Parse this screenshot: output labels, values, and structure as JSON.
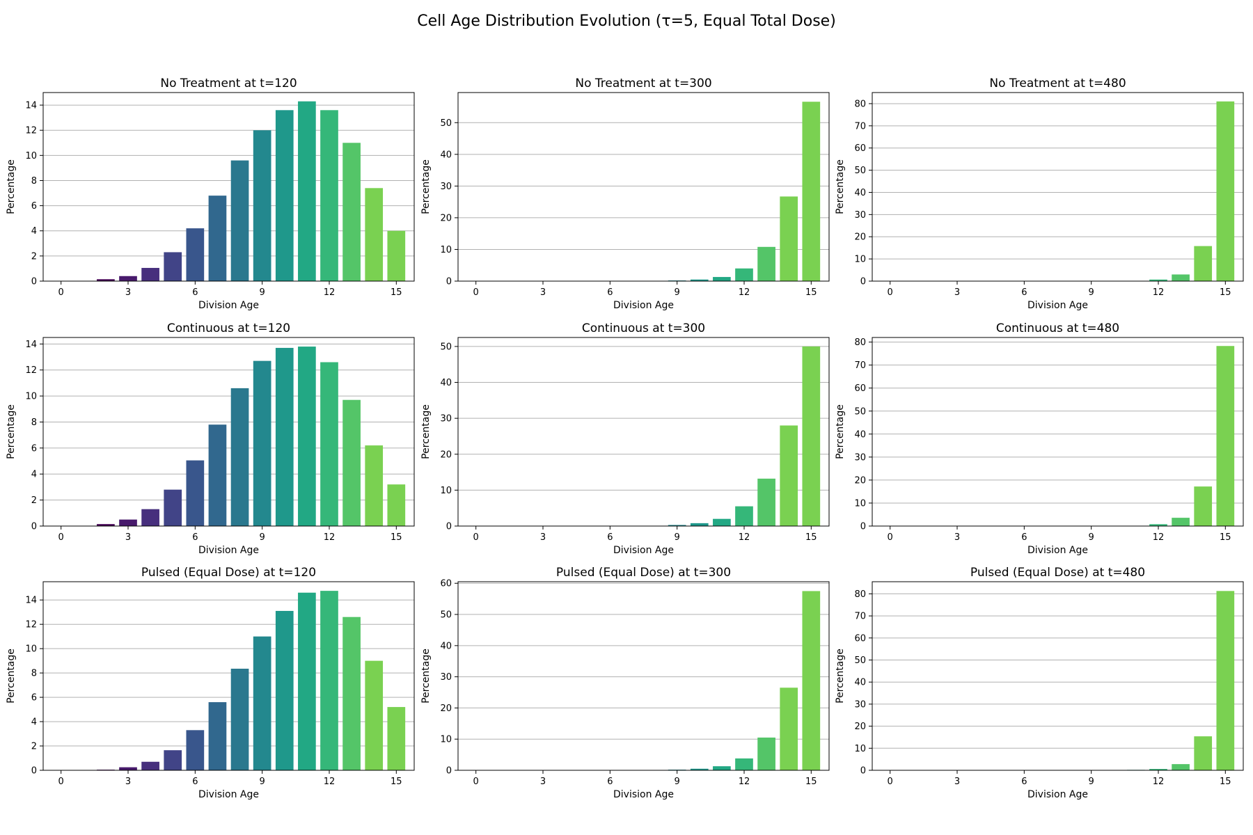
{
  "suptitle": "Cell Age Distribution Evolution (τ=5, Equal Total Dose)",
  "colors": [
    "#440154",
    "#481a6c",
    "#472f7d",
    "#414487",
    "#39568c",
    "#31688e",
    "#2a788e",
    "#23888e",
    "#1f988b",
    "#22a884",
    "#35b779",
    "#54c568",
    "#7ad151"
  ],
  "chart_data": [
    {
      "type": "bar",
      "title": "No Treatment at t=120",
      "xlabel": "Division Age",
      "ylabel": "Percentage",
      "xticks": [
        0,
        3,
        6,
        9,
        12,
        15
      ],
      "yticks": [
        0,
        2,
        4,
        6,
        8,
        10,
        12,
        14
      ],
      "ylim": [
        0,
        15
      ],
      "grid": "y",
      "x": [
        0,
        1,
        2,
        3,
        4,
        5,
        6,
        7,
        8,
        9,
        10,
        11,
        12,
        13,
        14,
        15
      ],
      "values": [
        0,
        0,
        0.15,
        0.4,
        1.05,
        2.3,
        4.2,
        6.8,
        9.6,
        12.0,
        13.6,
        14.3,
        13.6,
        11.0,
        7.4,
        4.0
      ]
    },
    {
      "type": "bar",
      "title": "No Treatment at t=300",
      "xlabel": "Division Age",
      "ylabel": "Percentage",
      "xticks": [
        0,
        3,
        6,
        9,
        12,
        15
      ],
      "yticks": [
        0,
        10,
        20,
        30,
        40,
        50
      ],
      "ylim": [
        0,
        59.5
      ],
      "grid": "y",
      "x": [
        0,
        1,
        2,
        3,
        4,
        5,
        6,
        7,
        8,
        9,
        10,
        11,
        12,
        13,
        14,
        15
      ],
      "values": [
        0,
        0,
        0,
        0,
        0,
        0,
        0,
        0,
        0,
        0.2,
        0.5,
        1.3,
        4.0,
        10.8,
        26.7,
        56.6
      ]
    },
    {
      "type": "bar",
      "title": "No Treatment at t=480",
      "xlabel": "Division Age",
      "ylabel": "Percentage",
      "xticks": [
        0,
        3,
        6,
        9,
        12,
        15
      ],
      "yticks": [
        0,
        10,
        20,
        30,
        40,
        50,
        60,
        70,
        80
      ],
      "ylim": [
        0,
        85
      ],
      "grid": "y",
      "x": [
        0,
        1,
        2,
        3,
        4,
        5,
        6,
        7,
        8,
        9,
        10,
        11,
        12,
        13,
        14,
        15
      ],
      "values": [
        0,
        0,
        0,
        0,
        0,
        0,
        0,
        0,
        0,
        0,
        0,
        0.1,
        0.7,
        3.0,
        15.8,
        81.0
      ]
    },
    {
      "type": "bar",
      "title": "Continuous at t=120",
      "xlabel": "Division Age",
      "ylabel": "Percentage",
      "xticks": [
        0,
        3,
        6,
        9,
        12,
        15
      ],
      "yticks": [
        0,
        2,
        4,
        6,
        8,
        10,
        12,
        14
      ],
      "ylim": [
        0,
        14.5
      ],
      "grid": "y",
      "x": [
        0,
        1,
        2,
        3,
        4,
        5,
        6,
        7,
        8,
        9,
        10,
        11,
        12,
        13,
        14,
        15
      ],
      "values": [
        0,
        0,
        0.15,
        0.5,
        1.3,
        2.8,
        5.05,
        7.8,
        10.6,
        12.7,
        13.7,
        13.8,
        12.6,
        9.7,
        6.2,
        3.2
      ]
    },
    {
      "type": "bar",
      "title": "Continuous at t=300",
      "xlabel": "Division Age",
      "ylabel": "Percentage",
      "xticks": [
        0,
        3,
        6,
        9,
        12,
        15
      ],
      "yticks": [
        0,
        10,
        20,
        30,
        40,
        50
      ],
      "ylim": [
        0,
        52.5
      ],
      "grid": "y",
      "x": [
        0,
        1,
        2,
        3,
        4,
        5,
        6,
        7,
        8,
        9,
        10,
        11,
        12,
        13,
        14,
        15
      ],
      "values": [
        0,
        0,
        0,
        0,
        0,
        0,
        0,
        0,
        0,
        0.3,
        0.8,
        2.0,
        5.5,
        13.2,
        28.0,
        50.0
      ]
    },
    {
      "type": "bar",
      "title": "Continuous at t=480",
      "xlabel": "Division Age",
      "ylabel": "Percentage",
      "xticks": [
        0,
        3,
        6,
        9,
        12,
        15
      ],
      "yticks": [
        0,
        10,
        20,
        30,
        40,
        50,
        60,
        70,
        80
      ],
      "ylim": [
        0,
        82
      ],
      "grid": "y",
      "x": [
        0,
        1,
        2,
        3,
        4,
        5,
        6,
        7,
        8,
        9,
        10,
        11,
        12,
        13,
        14,
        15
      ],
      "values": [
        0,
        0,
        0,
        0,
        0,
        0,
        0,
        0,
        0,
        0,
        0,
        0.15,
        0.8,
        3.6,
        17.2,
        78.3
      ]
    },
    {
      "type": "bar",
      "title": "Pulsed (Equal Dose) at t=120",
      "xlabel": "Division Age",
      "ylabel": "Percentage",
      "xticks": [
        0,
        3,
        6,
        9,
        12,
        15
      ],
      "yticks": [
        0,
        2,
        4,
        6,
        8,
        10,
        12,
        14
      ],
      "ylim": [
        0,
        15.5
      ],
      "grid": "y",
      "x": [
        0,
        1,
        2,
        3,
        4,
        5,
        6,
        7,
        8,
        9,
        10,
        11,
        12,
        13,
        14,
        15
      ],
      "values": [
        0,
        0,
        0.05,
        0.25,
        0.7,
        1.65,
        3.3,
        5.6,
        8.35,
        11.0,
        13.1,
        14.6,
        14.75,
        12.6,
        9.0,
        5.2
      ]
    },
    {
      "type": "bar",
      "title": "Pulsed (Equal Dose) at t=300",
      "xlabel": "Division Age",
      "ylabel": "Percentage",
      "xticks": [
        0,
        3,
        6,
        9,
        12,
        15
      ],
      "yticks": [
        0,
        10,
        20,
        30,
        40,
        50,
        60
      ],
      "ylim": [
        0,
        60.5
      ],
      "grid": "y",
      "x": [
        0,
        1,
        2,
        3,
        4,
        5,
        6,
        7,
        8,
        9,
        10,
        11,
        12,
        13,
        14,
        15
      ],
      "values": [
        0,
        0,
        0,
        0,
        0,
        0,
        0,
        0,
        0,
        0.2,
        0.5,
        1.3,
        3.8,
        10.5,
        26.5,
        57.5
      ]
    },
    {
      "type": "bar",
      "title": "Pulsed (Equal Dose) at t=480",
      "xlabel": "Division Age",
      "ylabel": "Percentage",
      "xticks": [
        0,
        3,
        6,
        9,
        12,
        15
      ],
      "yticks": [
        0,
        10,
        20,
        30,
        40,
        50,
        60,
        70,
        80
      ],
      "ylim": [
        0,
        85.5
      ],
      "grid": "y",
      "x": [
        0,
        1,
        2,
        3,
        4,
        5,
        6,
        7,
        8,
        9,
        10,
        11,
        12,
        13,
        14,
        15
      ],
      "values": [
        0,
        0,
        0,
        0,
        0,
        0,
        0,
        0,
        0,
        0,
        0,
        0.2,
        0.6,
        2.8,
        15.4,
        81.3
      ]
    }
  ]
}
